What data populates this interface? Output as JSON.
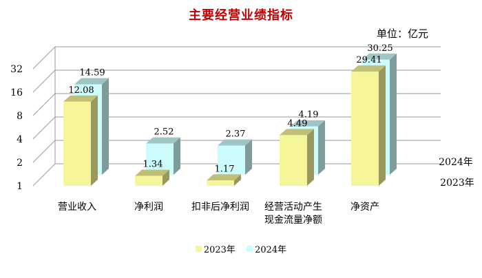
{
  "chart_data": {
    "type": "bar",
    "subtype": "3d-grouped",
    "title": "主要经营业绩指标",
    "unit_label": "单位：亿元",
    "categories": [
      "营业收入",
      "净利润",
      "扣非后净利润",
      "经营活动产生\n现金流量净额",
      "净资产"
    ],
    "series": [
      {
        "name": "2023年",
        "values": [
          12.08,
          1.34,
          1.17,
          4.49,
          29.41
        ],
        "color": "#f6f59a"
      },
      {
        "name": "2024年",
        "values": [
          14.59,
          2.52,
          2.37,
          4.19,
          30.25
        ],
        "color": "#ccfcfc"
      }
    ],
    "depth_labels": [
      "2023年",
      "2024年"
    ],
    "y_ticks": [
      "1",
      "2",
      "4",
      "8",
      "16",
      "32"
    ],
    "y_scale": "log2",
    "ylim": [
      1,
      32
    ],
    "grid": true,
    "legend_position": "bottom"
  }
}
